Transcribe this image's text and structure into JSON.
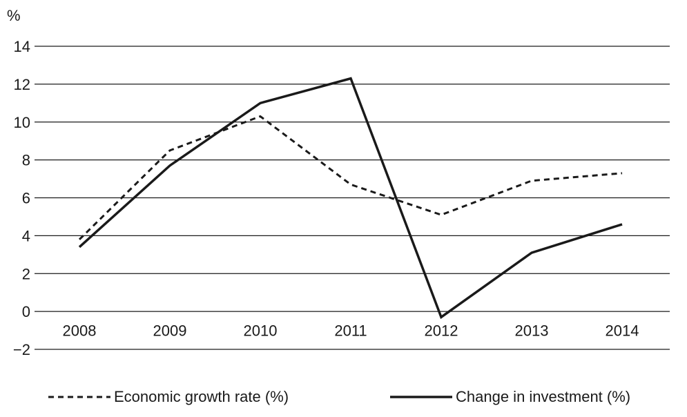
{
  "chart_data": {
    "type": "line",
    "ylabel": "%",
    "categories": [
      "2008",
      "2009",
      "2010",
      "2011",
      "2012",
      "2013",
      "2014"
    ],
    "ylim": [
      -2,
      14
    ],
    "yticks": [
      -2,
      0,
      2,
      4,
      6,
      8,
      10,
      12,
      14
    ],
    "grid": true,
    "legend_position": "bottom",
    "series": [
      {
        "name": "Economic growth rate (%)",
        "style": "dashed",
        "values": [
          3.8,
          8.5,
          10.3,
          6.7,
          5.1,
          6.9,
          7.3
        ]
      },
      {
        "name": "Change in investment (%)",
        "style": "solid",
        "values": [
          3.4,
          7.7,
          11.0,
          12.3,
          -0.3,
          3.1,
          4.6
        ]
      }
    ]
  },
  "colors": {
    "line": "#1a1a1a",
    "grid": "#1a1a1a",
    "background": "#ffffff"
  }
}
